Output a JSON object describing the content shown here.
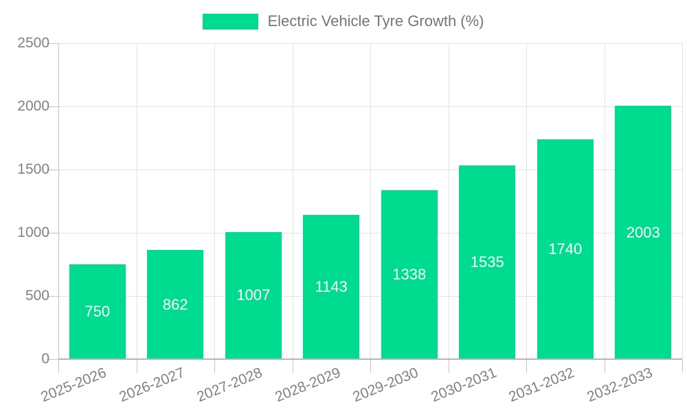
{
  "chart_data": {
    "type": "bar",
    "title": "Electric Vehicle Tyre Growth (%)",
    "categories": [
      "2025-2026",
      "2026-2027",
      "2027-2028",
      "2028-2029",
      "2029-2030",
      "2030-2031",
      "2031-2032",
      "2032-2033"
    ],
    "series": [
      {
        "name": "Electric Vehicle Tyre Growth (%)",
        "values": [
          750,
          862,
          1007,
          1143,
          1338,
          1535,
          1740,
          2003
        ]
      }
    ],
    "values": [
      750,
      862,
      1007,
      1143,
      1338,
      1535,
      1740,
      2003
    ],
    "xlabel": "",
    "ylabel": "",
    "ylim": [
      0,
      2500
    ],
    "y_ticks": [
      0,
      500,
      1000,
      1500,
      2000,
      2500
    ],
    "grid": true,
    "legend_position": "top",
    "bar_color": "#00DC8F",
    "value_label_color": "#ffffff"
  },
  "legend": {
    "label": "Electric Vehicle Tyre Growth (%)",
    "swatch_color": "#00DC8F"
  },
  "colors": {
    "title_text": "#757575",
    "axis_text": "#818181",
    "gridline": "#e2e2e2",
    "axis_line": "#b5b5b5",
    "tick_line": "#c2c2c2",
    "background": "#ffffff"
  }
}
